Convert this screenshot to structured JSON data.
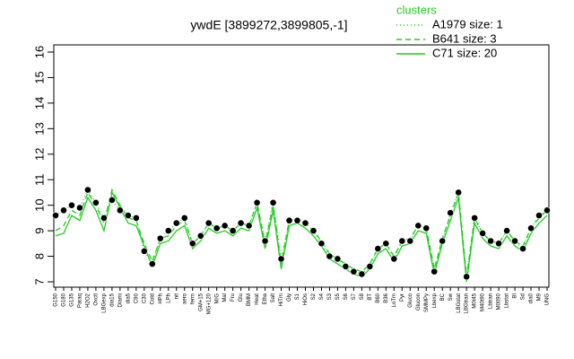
{
  "chart_data": {
    "type": "line",
    "title": "ywdE [3899272,3899805,-1]",
    "legend_title": "clusters",
    "categories": [
      "G150",
      "G180",
      "G135",
      "Paraq",
      "H2O2",
      "Oxctl",
      "LBGexp",
      "dia15",
      "Diami",
      "dia5",
      "C90",
      "C30",
      "Cold",
      "HPh",
      "LPh",
      "nit",
      "aero",
      "ferm",
      "GM+15",
      "MG+120",
      "M/G",
      "Mal",
      "Fru",
      "Glu",
      "BMM",
      "Heat",
      "Etha",
      "Salt",
      "HiTm",
      "Gly",
      "S1",
      "HiOs",
      "S2",
      "S4",
      "S3",
      "S5",
      "S6",
      "S7",
      "S8",
      "BT",
      "B60",
      "B36",
      "LoTm",
      "Pyr",
      "Gluco",
      "Glucon",
      "SMMPy",
      "Lbexp",
      "BC",
      "Sw",
      "LBGstat",
      "LBGtran",
      "M0t45",
      "M40t90",
      "Lbtran",
      "M0090",
      "Lbstat",
      "BI",
      "Sd",
      "dia0",
      "M9",
      "UNG"
    ],
    "values": [
      9.6,
      9.8,
      10.0,
      9.9,
      10.6,
      10.1,
      9.5,
      10.2,
      9.8,
      9.6,
      9.5,
      8.2,
      7.7,
      8.7,
      9.0,
      9.3,
      9.5,
      8.5,
      8.8,
      9.3,
      9.1,
      9.2,
      9.0,
      9.3,
      9.2,
      10.1,
      8.6,
      10.1,
      7.9,
      9.4,
      9.4,
      9.3,
      9.0,
      8.5,
      8.0,
      7.9,
      7.6,
      7.4,
      7.3,
      7.6,
      8.3,
      8.5,
      7.9,
      8.6,
      8.6,
      9.2,
      9.1,
      7.4,
      8.6,
      9.7,
      10.5,
      7.2,
      9.5,
      8.9,
      8.6,
      8.5,
      9.0,
      8.6,
      8.3,
      9.1,
      9.6,
      9.8
    ],
    "point_color": "#000000",
    "series": [
      {
        "name": "A1979 size: 1",
        "color": "#22cc22",
        "dash": "dotted",
        "values": [
          9.6,
          9.8,
          10.0,
          9.9,
          10.6,
          10.1,
          9.5,
          10.2,
          9.8,
          9.6,
          9.5,
          8.2,
          7.7,
          8.7,
          9.0,
          9.3,
          9.5,
          8.5,
          8.8,
          9.3,
          9.1,
          9.2,
          9.0,
          9.3,
          9.2,
          10.1,
          8.6,
          10.1,
          7.9,
          9.4,
          9.4,
          9.3,
          9.0,
          8.5,
          8.0,
          7.9,
          7.6,
          7.4,
          7.3,
          7.6,
          8.3,
          8.5,
          7.9,
          8.6,
          8.6,
          9.2,
          9.1,
          7.4,
          8.6,
          9.7,
          10.5,
          7.2,
          9.5,
          8.9,
          8.6,
          8.5,
          9.0,
          8.6,
          8.3,
          9.1,
          9.6,
          9.8
        ]
      },
      {
        "name": "B641 size: 3",
        "color": "#22cc22",
        "dash": "dashed",
        "values": [
          9.0,
          9.2,
          9.8,
          9.6,
          10.5,
          10.0,
          9.3,
          10.6,
          10.0,
          9.5,
          9.4,
          8.5,
          7.8,
          8.7,
          8.8,
          9.2,
          9.4,
          8.5,
          8.8,
          9.3,
          9.1,
          9.2,
          9.0,
          9.3,
          9.2,
          10.1,
          8.5,
          10.0,
          7.7,
          9.4,
          9.5,
          9.3,
          9.0,
          8.6,
          8.1,
          7.9,
          7.7,
          7.5,
          7.4,
          7.7,
          8.3,
          8.5,
          8.0,
          8.6,
          8.7,
          9.2,
          9.1,
          7.5,
          8.7,
          9.6,
          10.5,
          7.2,
          9.5,
          8.9,
          8.6,
          8.5,
          9.0,
          8.6,
          8.4,
          9.1,
          9.5,
          9.8
        ]
      },
      {
        "name": "C71 size: 20",
        "color": "#22cc22",
        "dash": "solid",
        "values": [
          8.8,
          8.9,
          9.6,
          9.4,
          10.3,
          9.8,
          9.0,
          10.5,
          9.9,
          9.3,
          9.2,
          8.4,
          7.6,
          8.5,
          8.6,
          9.0,
          9.2,
          8.3,
          8.6,
          9.1,
          8.9,
          9.0,
          8.8,
          9.1,
          9.0,
          9.9,
          8.3,
          9.8,
          7.5,
          9.2,
          9.3,
          9.1,
          8.8,
          8.4,
          7.9,
          7.7,
          7.5,
          7.3,
          7.2,
          7.5,
          8.1,
          8.3,
          7.8,
          8.4,
          8.5,
          9.0,
          8.9,
          7.3,
          8.5,
          9.4,
          10.3,
          7.0,
          9.3,
          8.7,
          8.4,
          8.3,
          8.8,
          8.4,
          8.2,
          8.9,
          9.3,
          9.6
        ]
      }
    ],
    "ylim": [
      7,
      16
    ],
    "yticks": [
      7,
      8,
      9,
      10,
      11,
      12,
      13,
      14,
      15,
      16
    ]
  }
}
